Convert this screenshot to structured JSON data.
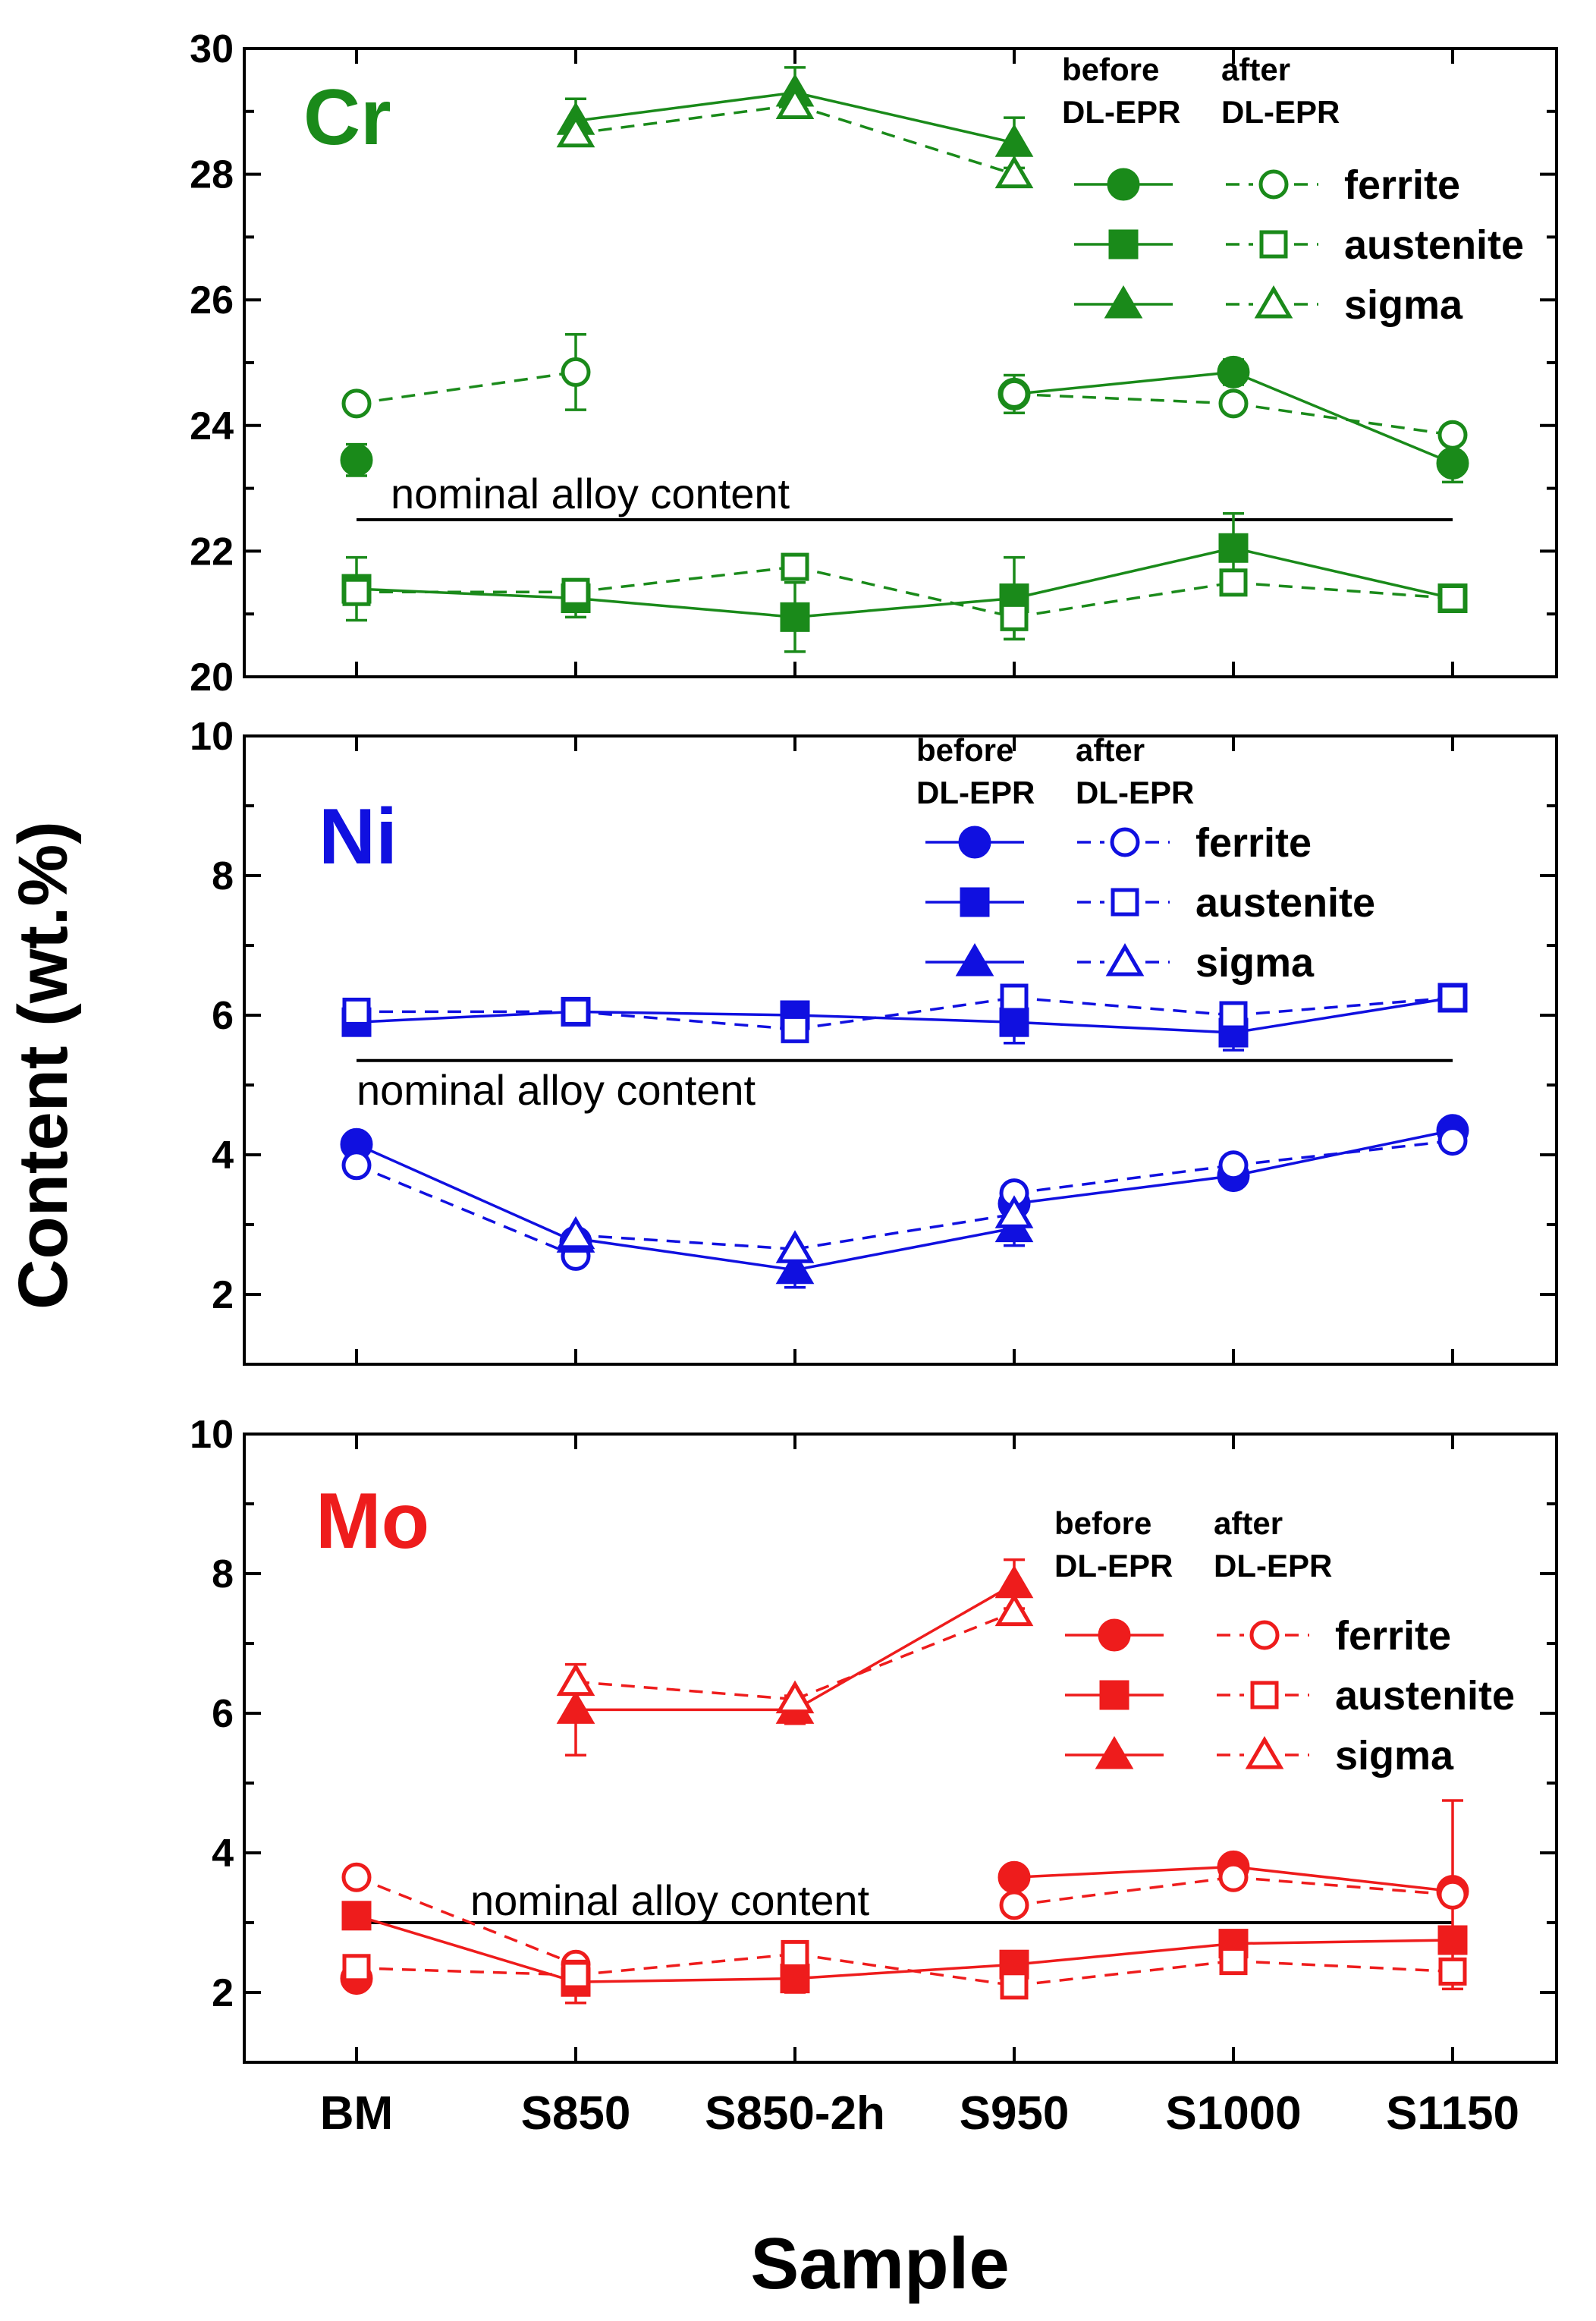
{
  "figure": {
    "ylabel": "Content (wt.%)",
    "xlabel": "Sample",
    "categories": [
      "BM",
      "S850",
      "S850-2h",
      "S950",
      "S1000",
      "S1150"
    ],
    "legend_headers": {
      "before": [
        "before",
        "DL-EPR"
      ],
      "after": [
        "after",
        "DL-EPR"
      ]
    },
    "nominal_label": "nominal alloy content"
  },
  "chart_data": [
    {
      "type": "line",
      "panel_label": "Cr",
      "color": "#1a8a1a",
      "ylim": [
        20,
        30
      ],
      "yticks": [
        20,
        22,
        24,
        26,
        28,
        30
      ],
      "minor_step": 1,
      "categories": [
        "BM",
        "S850",
        "S850-2h",
        "S950",
        "S1000",
        "S1150"
      ],
      "nominal": 22.5,
      "series": [
        {
          "name": "ferrite",
          "phase": "before",
          "marker": "circle",
          "filled": true,
          "values": [
            23.45,
            null,
            null,
            24.5,
            24.85,
            23.4
          ],
          "err": [
            0.25,
            null,
            null,
            0.3,
            0.2,
            0.3
          ]
        },
        {
          "name": "ferrite",
          "phase": "after",
          "marker": "circle",
          "filled": false,
          "values": [
            24.35,
            24.85,
            null,
            24.5,
            24.35,
            23.85
          ],
          "err": [
            null,
            0.6,
            null,
            null,
            null,
            null
          ]
        },
        {
          "name": "austenite",
          "phase": "before",
          "marker": "square",
          "filled": true,
          "values": [
            21.4,
            21.25,
            20.95,
            21.25,
            22.05,
            21.25
          ],
          "err": [
            0.5,
            0.3,
            0.55,
            0.65,
            0.55,
            null
          ]
        },
        {
          "name": "austenite",
          "phase": "after",
          "marker": "square",
          "filled": false,
          "values": [
            21.35,
            21.35,
            21.75,
            20.95,
            21.5,
            21.25
          ],
          "err": [
            null,
            null,
            null,
            0.35,
            null,
            null
          ]
        },
        {
          "name": "sigma",
          "phase": "before",
          "marker": "triangle",
          "filled": true,
          "values": [
            null,
            28.85,
            29.3,
            28.5,
            null,
            null
          ],
          "err": [
            null,
            0.35,
            0.4,
            0.4,
            null,
            null
          ]
        },
        {
          "name": "sigma",
          "phase": "after",
          "marker": "triangle",
          "filled": false,
          "values": [
            null,
            28.65,
            29.1,
            28.0,
            null,
            null
          ],
          "err": [
            null,
            null,
            null,
            null,
            null,
            null
          ]
        }
      ]
    },
    {
      "type": "line",
      "panel_label": "Ni",
      "color": "#1010e0",
      "ylim": [
        1.0,
        10
      ],
      "yticks": [
        2,
        4,
        6,
        8,
        10
      ],
      "minor_step": 1,
      "categories": [
        "BM",
        "S850",
        "S850-2h",
        "S950",
        "S1000",
        "S1150"
      ],
      "nominal": 5.35,
      "series": [
        {
          "name": "ferrite",
          "phase": "before",
          "marker": "circle",
          "filled": true,
          "values": [
            4.15,
            2.75,
            null,
            3.3,
            3.7,
            4.35
          ],
          "err": [
            null,
            null,
            null,
            null,
            null,
            null
          ]
        },
        {
          "name": "ferrite",
          "phase": "after",
          "marker": "circle",
          "filled": false,
          "values": [
            3.85,
            2.55,
            null,
            3.45,
            3.85,
            4.2
          ],
          "err": [
            null,
            null,
            null,
            null,
            null,
            null
          ]
        },
        {
          "name": "austenite",
          "phase": "before",
          "marker": "square",
          "filled": true,
          "values": [
            5.9,
            6.05,
            6.0,
            5.9,
            5.75,
            6.25
          ],
          "err": [
            null,
            null,
            null,
            0.3,
            0.25,
            null
          ]
        },
        {
          "name": "austenite",
          "phase": "after",
          "marker": "square",
          "filled": false,
          "values": [
            6.05,
            6.05,
            5.8,
            6.25,
            6.0,
            6.25
          ],
          "err": [
            null,
            null,
            null,
            null,
            null,
            null
          ]
        },
        {
          "name": "sigma",
          "phase": "before",
          "marker": "triangle",
          "filled": true,
          "values": [
            null,
            2.8,
            2.35,
            2.95,
            null,
            null
          ],
          "err": [
            null,
            null,
            0.25,
            0.25,
            null,
            null
          ]
        },
        {
          "name": "sigma",
          "phase": "after",
          "marker": "triangle",
          "filled": false,
          "values": [
            null,
            2.85,
            2.65,
            3.15,
            null,
            null
          ],
          "err": [
            null,
            null,
            null,
            null,
            null,
            null
          ]
        }
      ]
    },
    {
      "type": "line",
      "panel_label": "Mo",
      "color": "#ee1c1c",
      "ylim": [
        1.0,
        10
      ],
      "yticks": [
        2,
        4,
        6,
        8,
        10
      ],
      "minor_step": 1,
      "categories": [
        "BM",
        "S850",
        "S850-2h",
        "S950",
        "S1000",
        "S1150"
      ],
      "nominal": 3.0,
      "series": [
        {
          "name": "ferrite",
          "phase": "before",
          "marker": "circle",
          "filled": true,
          "values": [
            2.2,
            null,
            null,
            3.65,
            3.8,
            3.45
          ],
          "err": [
            null,
            null,
            null,
            null,
            null,
            null
          ]
        },
        {
          "name": "ferrite",
          "phase": "after",
          "marker": "circle",
          "filled": false,
          "values": [
            3.65,
            2.4,
            null,
            3.25,
            3.65,
            3.4
          ],
          "err": [
            null,
            null,
            null,
            null,
            null,
            1.35
          ]
        },
        {
          "name": "austenite",
          "phase": "before",
          "marker": "square",
          "filled": true,
          "values": [
            3.1,
            2.15,
            2.2,
            2.4,
            2.7,
            2.75
          ],
          "err": [
            null,
            0.3,
            0.2,
            null,
            null,
            null
          ]
        },
        {
          "name": "austenite",
          "phase": "after",
          "marker": "square",
          "filled": false,
          "values": [
            2.35,
            2.25,
            2.55,
            2.1,
            2.45,
            2.3
          ],
          "err": [
            null,
            null,
            null,
            null,
            null,
            null
          ]
        },
        {
          "name": "sigma",
          "phase": "before",
          "marker": "triangle",
          "filled": true,
          "values": [
            null,
            6.05,
            6.05,
            7.85,
            null,
            null
          ],
          "err": [
            null,
            0.65,
            0.2,
            0.35,
            null,
            null
          ]
        },
        {
          "name": "sigma",
          "phase": "after",
          "marker": "triangle",
          "filled": false,
          "values": [
            null,
            6.45,
            6.2,
            7.45,
            null,
            null
          ],
          "err": [
            null,
            null,
            null,
            null,
            null,
            null
          ]
        }
      ]
    }
  ]
}
